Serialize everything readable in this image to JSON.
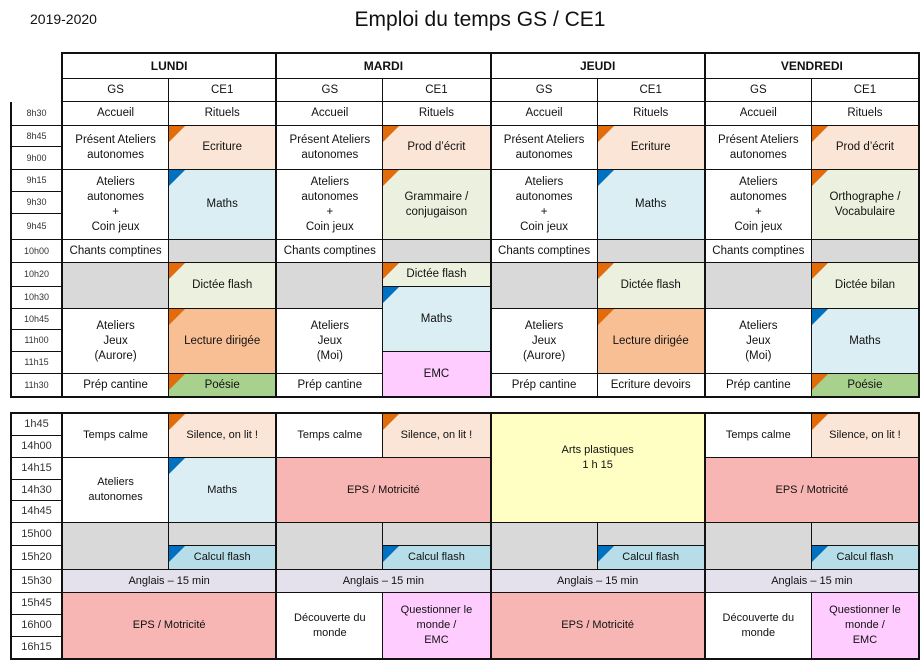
{
  "header": {
    "year": "2019-2020",
    "title": "Emploi du temps GS / CE1"
  },
  "colors": {
    "white": "#ffffff",
    "peach": "#fbe5d6",
    "blue": "#dbeef4",
    "lightgreen": "#ebf1de",
    "grey": "#d9d9d9",
    "orange": "#f8bf94",
    "green": "#a9d18e",
    "pink": "#ffccff",
    "red": "#f7b6b4",
    "yellow": "#ffffc4",
    "lavender": "#e4e0ec",
    "calc": "#b7dee8",
    "corner_orange": "#e36c0a",
    "corner_blue": "#0070c0"
  },
  "days": [
    "LUNDI",
    "MARDI",
    "JEUDI",
    "VENDREDI"
  ],
  "groups": [
    "GS",
    "CE1"
  ],
  "morning": {
    "times": [
      "8h30",
      "8h45",
      "9h00",
      "9h15",
      "9h30",
      "9h45",
      "10h00",
      "10h20",
      "10h30",
      "10h45",
      "11h00",
      "11h15",
      "11h30"
    ],
    "cells": [
      {
        "day": 0,
        "col": "GS",
        "from": "8h30",
        "to": "8h30",
        "text": "Accueil",
        "bg": "white"
      },
      {
        "day": 0,
        "col": "GS",
        "from": "8h45",
        "to": "9h00",
        "text": "Présent Ateliers\nautonomes",
        "bg": "white"
      },
      {
        "day": 0,
        "col": "GS",
        "from": "9h15",
        "to": "9h45",
        "text": "Ateliers\nautonomes\n+\nCoin jeux",
        "bg": "white"
      },
      {
        "day": 0,
        "col": "GS",
        "from": "10h00",
        "to": "10h00",
        "text": "Chants comptines",
        "bg": "white"
      },
      {
        "day": 0,
        "col": "GS",
        "from": "10h20",
        "to": "10h30",
        "text": "",
        "bg": "grey"
      },
      {
        "day": 0,
        "col": "GS",
        "from": "10h45",
        "to": "11h15",
        "text": "Ateliers\nJeux\n(Aurore)",
        "bg": "white"
      },
      {
        "day": 0,
        "col": "GS",
        "from": "11h30",
        "to": "11h30",
        "text": "Prép cantine",
        "bg": "white"
      },
      {
        "day": 0,
        "col": "CE1",
        "from": "8h30",
        "to": "8h30",
        "text": "Rituels",
        "bg": "white"
      },
      {
        "day": 0,
        "col": "CE1",
        "from": "8h45",
        "to": "9h00",
        "text": "Ecriture",
        "bg": "peach",
        "corner": "orange"
      },
      {
        "day": 0,
        "col": "CE1",
        "from": "9h15",
        "to": "9h45",
        "text": "Maths",
        "bg": "blue",
        "corner": "blue"
      },
      {
        "day": 0,
        "col": "CE1",
        "from": "10h00",
        "to": "10h00",
        "text": "",
        "bg": "grey"
      },
      {
        "day": 0,
        "col": "CE1",
        "from": "10h20",
        "to": "10h30",
        "text": "Dictée flash",
        "bg": "lightgreen",
        "corner": "orange"
      },
      {
        "day": 0,
        "col": "CE1",
        "from": "10h45",
        "to": "11h15",
        "text": "Lecture dirigée",
        "bg": "orange",
        "corner": "orange"
      },
      {
        "day": 0,
        "col": "CE1",
        "from": "11h30",
        "to": "11h30",
        "text": "Poésie",
        "bg": "green",
        "corner": "orange"
      },
      {
        "day": 1,
        "col": "GS",
        "from": "8h30",
        "to": "8h30",
        "text": "Accueil",
        "bg": "white"
      },
      {
        "day": 1,
        "col": "GS",
        "from": "8h45",
        "to": "9h00",
        "text": "Présent Ateliers\nautonomes",
        "bg": "white"
      },
      {
        "day": 1,
        "col": "GS",
        "from": "9h15",
        "to": "9h45",
        "text": "Ateliers\nautonomes\n+\nCoin jeux",
        "bg": "white"
      },
      {
        "day": 1,
        "col": "GS",
        "from": "10h00",
        "to": "10h00",
        "text": "Chants comptines",
        "bg": "white"
      },
      {
        "day": 1,
        "col": "GS",
        "from": "10h20",
        "to": "10h30",
        "text": "",
        "bg": "grey"
      },
      {
        "day": 1,
        "col": "GS",
        "from": "10h45",
        "to": "11h15",
        "text": "Ateliers\nJeux\n(Moi)",
        "bg": "white"
      },
      {
        "day": 1,
        "col": "GS",
        "from": "11h30",
        "to": "11h30",
        "text": "Prép cantine",
        "bg": "white"
      },
      {
        "day": 1,
        "col": "CE1",
        "from": "8h30",
        "to": "8h30",
        "text": "Rituels",
        "bg": "white"
      },
      {
        "day": 1,
        "col": "CE1",
        "from": "8h45",
        "to": "9h00",
        "text": "Prod d’écrit",
        "bg": "peach",
        "corner": "orange"
      },
      {
        "day": 1,
        "col": "CE1",
        "from": "9h15",
        "to": "9h45",
        "text": "Grammaire /\nconjugaison",
        "bg": "lightgreen",
        "corner": "orange"
      },
      {
        "day": 1,
        "col": "CE1",
        "from": "10h00",
        "to": "10h00",
        "text": "",
        "bg": "grey"
      },
      {
        "day": 1,
        "col": "CE1",
        "from": "10h20",
        "to": "10h20",
        "text": "Dictée flash",
        "bg": "lightgreen",
        "corner": "orange"
      },
      {
        "day": 1,
        "col": "CE1",
        "from": "10h30",
        "to": "11h00",
        "text": "Maths",
        "bg": "blue",
        "corner": "blue"
      },
      {
        "day": 1,
        "col": "CE1",
        "from": "11h15",
        "to": "11h30",
        "text": "EMC",
        "bg": "pink"
      },
      {
        "day": 2,
        "col": "GS",
        "from": "8h30",
        "to": "8h30",
        "text": "Accueil",
        "bg": "white"
      },
      {
        "day": 2,
        "col": "GS",
        "from": "8h45",
        "to": "9h00",
        "text": "Présent Ateliers\nautonomes",
        "bg": "white"
      },
      {
        "day": 2,
        "col": "GS",
        "from": "9h15",
        "to": "9h45",
        "text": "Ateliers\nautonomes\n+\nCoin jeux",
        "bg": "white"
      },
      {
        "day": 2,
        "col": "GS",
        "from": "10h00",
        "to": "10h00",
        "text": "Chants comptines",
        "bg": "white"
      },
      {
        "day": 2,
        "col": "GS",
        "from": "10h20",
        "to": "10h30",
        "text": "",
        "bg": "grey"
      },
      {
        "day": 2,
        "col": "GS",
        "from": "10h45",
        "to": "11h15",
        "text": "Ateliers\nJeux\n(Aurore)",
        "bg": "white"
      },
      {
        "day": 2,
        "col": "GS",
        "from": "11h30",
        "to": "11h30",
        "text": "Prép cantine",
        "bg": "white"
      },
      {
        "day": 2,
        "col": "CE1",
        "from": "8h30",
        "to": "8h30",
        "text": "Rituels",
        "bg": "white"
      },
      {
        "day": 2,
        "col": "CE1",
        "from": "8h45",
        "to": "9h00",
        "text": "Ecriture",
        "bg": "peach",
        "corner": "orange"
      },
      {
        "day": 2,
        "col": "CE1",
        "from": "9h15",
        "to": "9h45",
        "text": "Maths",
        "bg": "blue",
        "corner": "blue"
      },
      {
        "day": 2,
        "col": "CE1",
        "from": "10h00",
        "to": "10h00",
        "text": "",
        "bg": "grey"
      },
      {
        "day": 2,
        "col": "CE1",
        "from": "10h20",
        "to": "10h30",
        "text": "Dictée flash",
        "bg": "lightgreen",
        "corner": "orange"
      },
      {
        "day": 2,
        "col": "CE1",
        "from": "10h45",
        "to": "11h15",
        "text": "Lecture dirigée",
        "bg": "orange",
        "corner": "orange"
      },
      {
        "day": 2,
        "col": "CE1",
        "from": "11h30",
        "to": "11h30",
        "text": "Ecriture devoirs",
        "bg": "white"
      },
      {
        "day": 3,
        "col": "GS",
        "from": "8h30",
        "to": "8h30",
        "text": "Accueil",
        "bg": "white"
      },
      {
        "day": 3,
        "col": "GS",
        "from": "8h45",
        "to": "9h00",
        "text": "Présent Ateliers\nautonomes",
        "bg": "white"
      },
      {
        "day": 3,
        "col": "GS",
        "from": "9h15",
        "to": "9h45",
        "text": "Ateliers\nautonomes\n+\nCoin jeux",
        "bg": "white"
      },
      {
        "day": 3,
        "col": "GS",
        "from": "10h00",
        "to": "10h00",
        "text": "Chants comptines",
        "bg": "white"
      },
      {
        "day": 3,
        "col": "GS",
        "from": "10h20",
        "to": "10h30",
        "text": "",
        "bg": "grey"
      },
      {
        "day": 3,
        "col": "GS",
        "from": "10h45",
        "to": "11h15",
        "text": "Ateliers\nJeux\n(Moi)",
        "bg": "white"
      },
      {
        "day": 3,
        "col": "GS",
        "from": "11h30",
        "to": "11h30",
        "text": "Prép cantine",
        "bg": "white"
      },
      {
        "day": 3,
        "col": "CE1",
        "from": "8h30",
        "to": "8h30",
        "text": "Rituels",
        "bg": "white"
      },
      {
        "day": 3,
        "col": "CE1",
        "from": "8h45",
        "to": "9h00",
        "text": "Prod d’écrit",
        "bg": "peach",
        "corner": "orange"
      },
      {
        "day": 3,
        "col": "CE1",
        "from": "9h15",
        "to": "9h45",
        "text": "Orthographe /\nVocabulaire",
        "bg": "lightgreen",
        "corner": "orange"
      },
      {
        "day": 3,
        "col": "CE1",
        "from": "10h00",
        "to": "10h00",
        "text": "",
        "bg": "grey"
      },
      {
        "day": 3,
        "col": "CE1",
        "from": "10h20",
        "to": "10h30",
        "text": "Dictée bilan",
        "bg": "lightgreen",
        "corner": "orange"
      },
      {
        "day": 3,
        "col": "CE1",
        "from": "10h45",
        "to": "11h15",
        "text": "Maths",
        "bg": "blue",
        "corner": "blue"
      },
      {
        "day": 3,
        "col": "CE1",
        "from": "11h30",
        "to": "11h30",
        "text": "Poésie",
        "bg": "green",
        "corner": "orange"
      }
    ]
  },
  "afternoon": {
    "times": [
      "1h45",
      "14h00",
      "14h15",
      "14h30",
      "14h45",
      "15h00",
      "15h20",
      "15h30",
      "15h45",
      "16h00",
      "16h15"
    ],
    "cells": [
      {
        "day": 0,
        "col": "GS",
        "from": "1h45",
        "to": "14h00",
        "text": "Temps calme",
        "bg": "white"
      },
      {
        "day": 0,
        "col": "CE1",
        "from": "1h45",
        "to": "14h00",
        "text": "Silence,  on lit !",
        "bg": "peach",
        "corner": "orange"
      },
      {
        "day": 0,
        "col": "GS",
        "from": "14h15",
        "to": "14h45",
        "text": "Ateliers\nautonomes",
        "bg": "white"
      },
      {
        "day": 0,
        "col": "CE1",
        "from": "14h15",
        "to": "14h45",
        "text": "Maths",
        "bg": "blue",
        "corner": "blue"
      },
      {
        "day": 0,
        "col": "GS",
        "from": "15h00",
        "to": "15h20",
        "text": "",
        "bg": "grey"
      },
      {
        "day": 0,
        "col": "CE1",
        "from": "15h00",
        "to": "15h00",
        "text": "",
        "bg": "grey"
      },
      {
        "day": 0,
        "col": "CE1",
        "from": "15h20",
        "to": "15h20",
        "text": "Calcul flash",
        "bg": "calc",
        "corner": "blue"
      },
      {
        "day": 0,
        "col": "both",
        "from": "15h30",
        "to": "15h30",
        "text": "Anglais – 15 min",
        "bg": "lavender"
      },
      {
        "day": 0,
        "col": "both",
        "from": "15h45",
        "to": "16h15",
        "text": "EPS / Motricité",
        "bg": "red"
      },
      {
        "day": 1,
        "col": "GS",
        "from": "1h45",
        "to": "14h00",
        "text": "Temps calme",
        "bg": "white"
      },
      {
        "day": 1,
        "col": "CE1",
        "from": "1h45",
        "to": "14h00",
        "text": "Silence,  on lit !",
        "bg": "peach",
        "corner": "orange"
      },
      {
        "day": 1,
        "col": "both",
        "from": "14h15",
        "to": "14h45",
        "text": "EPS / Motricité",
        "bg": "red"
      },
      {
        "day": 1,
        "col": "GS",
        "from": "15h00",
        "to": "15h20",
        "text": "",
        "bg": "grey"
      },
      {
        "day": 1,
        "col": "CE1",
        "from": "15h00",
        "to": "15h00",
        "text": "",
        "bg": "grey"
      },
      {
        "day": 1,
        "col": "CE1",
        "from": "15h20",
        "to": "15h20",
        "text": "Calcul flash",
        "bg": "calc",
        "corner": "blue"
      },
      {
        "day": 1,
        "col": "both",
        "from": "15h30",
        "to": "15h30",
        "text": "Anglais – 15 min",
        "bg": "lavender"
      },
      {
        "day": 1,
        "col": "GS",
        "from": "15h45",
        "to": "16h15",
        "text": "Découverte du\nmonde",
        "bg": "white"
      },
      {
        "day": 1,
        "col": "CE1",
        "from": "15h45",
        "to": "16h15",
        "text": "Questionner le\nmonde /\nEMC",
        "bg": "pink"
      },
      {
        "day": 2,
        "col": "both",
        "from": "1h45",
        "to": "14h45",
        "text": "Arts plastiques\n1 h 15",
        "bg": "yellow"
      },
      {
        "day": 2,
        "col": "GS",
        "from": "15h00",
        "to": "15h20",
        "text": "",
        "bg": "grey"
      },
      {
        "day": 2,
        "col": "CE1",
        "from": "15h00",
        "to": "15h00",
        "text": "",
        "bg": "grey"
      },
      {
        "day": 2,
        "col": "CE1",
        "from": "15h20",
        "to": "15h20",
        "text": "Calcul flash",
        "bg": "calc",
        "corner": "blue"
      },
      {
        "day": 2,
        "col": "both",
        "from": "15h30",
        "to": "15h30",
        "text": "Anglais – 15 min",
        "bg": "lavender"
      },
      {
        "day": 2,
        "col": "both",
        "from": "15h45",
        "to": "16h15",
        "text": "EPS / Motricité",
        "bg": "red"
      },
      {
        "day": 3,
        "col": "GS",
        "from": "1h45",
        "to": "14h00",
        "text": "Temps calme",
        "bg": "white"
      },
      {
        "day": 3,
        "col": "CE1",
        "from": "1h45",
        "to": "14h00",
        "text": "Silence,  on lit !",
        "bg": "peach",
        "corner": "orange"
      },
      {
        "day": 3,
        "col": "both",
        "from": "14h15",
        "to": "14h45",
        "text": "EPS / Motricité",
        "bg": "red"
      },
      {
        "day": 3,
        "col": "GS",
        "from": "15h00",
        "to": "15h20",
        "text": "",
        "bg": "grey"
      },
      {
        "day": 3,
        "col": "CE1",
        "from": "15h00",
        "to": "15h00",
        "text": "",
        "bg": "grey"
      },
      {
        "day": 3,
        "col": "CE1",
        "from": "15h20",
        "to": "15h20",
        "text": "Calcul flash",
        "bg": "calc",
        "corner": "blue"
      },
      {
        "day": 3,
        "col": "both",
        "from": "15h30",
        "to": "15h30",
        "text": "Anglais – 15 min",
        "bg": "lavender"
      },
      {
        "day": 3,
        "col": "GS",
        "from": "15h45",
        "to": "16h15",
        "text": "Découverte du\nmonde",
        "bg": "white"
      },
      {
        "day": 3,
        "col": "CE1",
        "from": "15h45",
        "to": "16h15",
        "text": "Questionner le\nmonde /\nEMC",
        "bg": "pink"
      }
    ]
  }
}
